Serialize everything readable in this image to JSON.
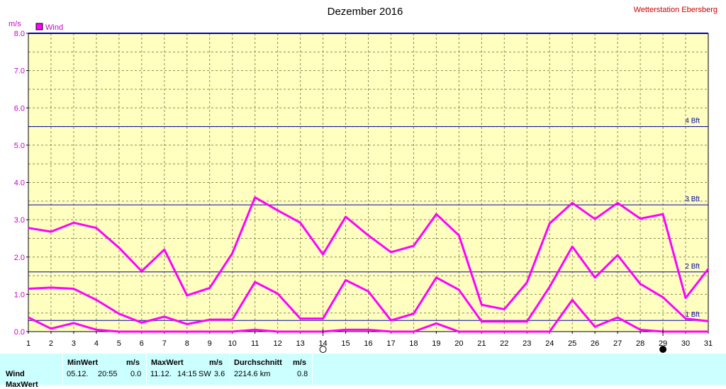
{
  "chart_data": {
    "type": "line",
    "title": "Dezember 2016",
    "station": "Wetterstation Ebersberg",
    "ylabel": "m/s",
    "legend": "Wind",
    "ylim": [
      0,
      8
    ],
    "yticks": [
      "0.0",
      "1.0",
      "2.0",
      "3.0",
      "4.0",
      "5.0",
      "6.0",
      "7.0",
      "8.0"
    ],
    "x": [
      1,
      2,
      3,
      4,
      5,
      6,
      7,
      8,
      9,
      10,
      11,
      12,
      13,
      14,
      15,
      16,
      17,
      18,
      19,
      20,
      21,
      22,
      23,
      24,
      25,
      26,
      27,
      28,
      29,
      30,
      31
    ],
    "series": [
      {
        "role": "max",
        "values": [
          2.78,
          2.68,
          2.92,
          2.78,
          2.25,
          1.62,
          2.2,
          0.97,
          1.17,
          2.1,
          3.6,
          3.25,
          2.92,
          2.07,
          3.08,
          2.58,
          2.13,
          2.3,
          3.15,
          2.58,
          0.72,
          0.6,
          1.32,
          2.9,
          3.45,
          3.02,
          3.45,
          3.03,
          3.15,
          0.9,
          1.68
        ]
      },
      {
        "role": "avg",
        "values": [
          1.15,
          1.18,
          1.15,
          0.85,
          0.48,
          0.24,
          0.4,
          0.2,
          0.32,
          0.32,
          1.33,
          1.02,
          0.35,
          0.35,
          1.38,
          1.08,
          0.3,
          0.48,
          1.45,
          1.12,
          0.27,
          0.27,
          0.27,
          1.2,
          2.28,
          1.45,
          2.05,
          1.28,
          0.92,
          0.35,
          0.28
        ]
      },
      {
        "role": "min",
        "values": [
          0.38,
          0.08,
          0.23,
          0.05,
          0.0,
          0.0,
          0.0,
          0.0,
          0.0,
          0.0,
          0.05,
          0.0,
          0.0,
          0.0,
          0.05,
          0.05,
          0.0,
          0.0,
          0.22,
          0.0,
          0.0,
          0.0,
          0.0,
          0.0,
          0.85,
          0.13,
          0.38,
          0.05,
          0.0,
          0.0,
          0.0
        ]
      }
    ],
    "color": "#ff00ff",
    "beaufort": [
      {
        "label": "1 Bft",
        "value": 0.3
      },
      {
        "label": "2 Bft",
        "value": 1.6
      },
      {
        "label": "3 Bft",
        "value": 3.4
      },
      {
        "label": "4 Bft",
        "value": 5.5
      }
    ],
    "moon_markers": [
      {
        "day": 14,
        "phase": "full-moon"
      },
      {
        "day": 29,
        "phase": "new-moon"
      }
    ]
  },
  "table": {
    "headers": {
      "min": "MinWert",
      "min_unit": "m/s",
      "max": "MaxWert",
      "max_unit": "m/s",
      "avg": "Durchschnitt",
      "avg_unit": "m/s"
    },
    "row1": {
      "label": "Wind",
      "min_date": "05.12.",
      "min_time": "20:55",
      "min_val": "0.0",
      "max_date": "11.12.",
      "max_time": "14:15",
      "max_dir": "SW",
      "max_val": "3.6",
      "dist": "2214.6 km",
      "avg_val": "0.8"
    },
    "row2_label": "MaxWert"
  }
}
